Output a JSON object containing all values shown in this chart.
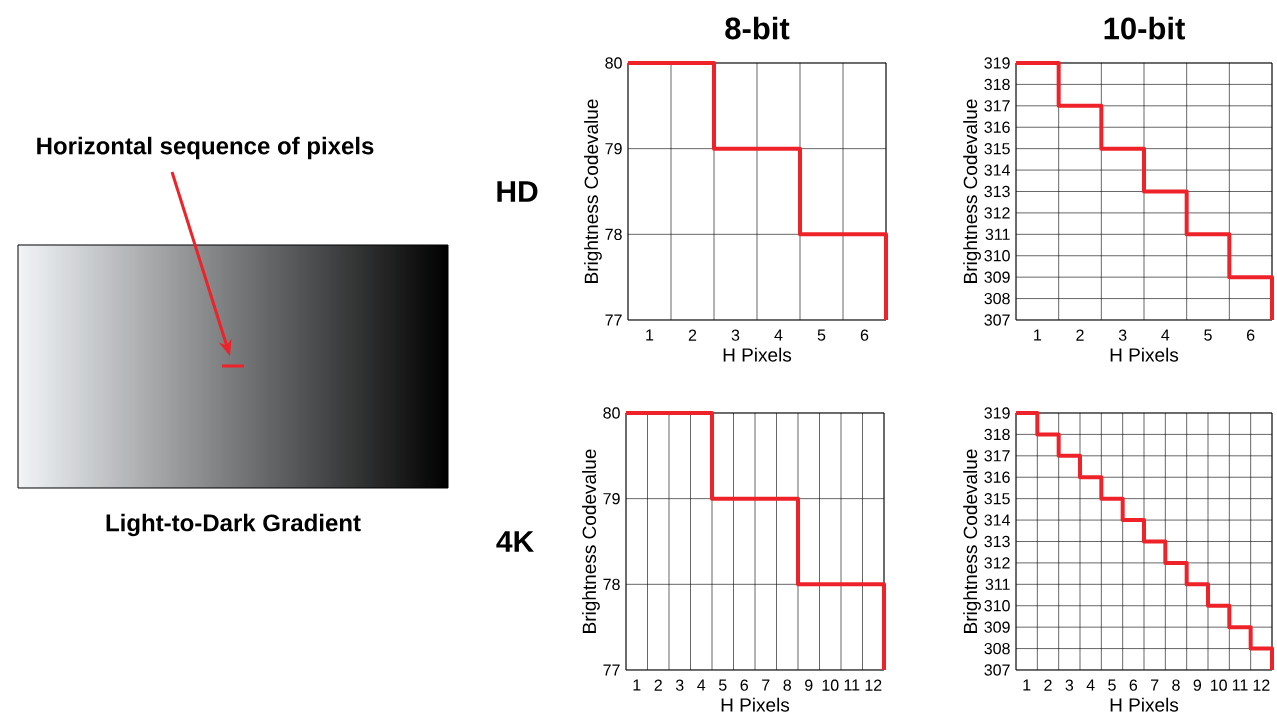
{
  "chart_data": [
    {
      "type": "other",
      "annotations": [
        "Horizontal sequence of pixels",
        "Light-to-Dark Gradient"
      ]
    },
    {
      "type": "step",
      "title": "8-bit",
      "xlabel": "H Pixels",
      "ylabel": "Brightness Codevalue",
      "annotations": [
        "HD"
      ],
      "x": [
        0.5,
        2.5,
        4.5,
        6.5
      ],
      "values": [
        80,
        79,
        78,
        77
      ],
      "color": "#ee2229",
      "xlim": [
        0.5,
        6.5
      ],
      "ylim": [
        77,
        80
      ],
      "xticks": [
        {
          "value": 0.5,
          "label": null
        },
        1,
        {
          "value": 1.5,
          "label": null
        },
        2,
        {
          "value": 2.5,
          "label": null
        },
        3,
        {
          "value": 3.5,
          "label": null
        },
        4,
        {
          "value": 4.5,
          "label": null
        },
        5,
        {
          "value": 5.5,
          "label": null
        },
        6,
        {
          "value": 6.5,
          "label": null
        }
      ],
      "yticks": [
        77,
        78,
        79,
        80
      ],
      "grid": true,
      "marker": "none",
      "line_style": "solid"
    },
    {
      "type": "step",
      "title": "10-bit",
      "xlabel": "H Pixels",
      "ylabel": "Brightness Codevalue",
      "x": [
        0.5,
        1.5,
        2.5,
        3.5,
        4.5,
        5.5,
        6.5
      ],
      "values": [
        319,
        317,
        315,
        313,
        311,
        309,
        307
      ],
      "color": "#ee2229",
      "xlim": [
        0.5,
        6.5
      ],
      "ylim": [
        307,
        319
      ],
      "xticks": [
        {
          "value": 0.5,
          "label": null
        },
        1,
        {
          "value": 1.5,
          "label": null
        },
        2,
        {
          "value": 2.5,
          "label": null
        },
        3,
        {
          "value": 3.5,
          "label": null
        },
        4,
        {
          "value": 4.5,
          "label": null
        },
        5,
        {
          "value": 5.5,
          "label": null
        },
        6,
        {
          "value": 6.5,
          "label": null
        }
      ],
      "yticks": [
        307,
        308,
        309,
        310,
        311,
        312,
        313,
        314,
        315,
        316,
        317,
        318,
        319
      ],
      "grid": true,
      "marker": "none",
      "line_style": "solid"
    },
    {
      "type": "step",
      "xlabel": "H Pixels",
      "ylabel": "Brightness Codevalue",
      "annotations": [
        "4K"
      ],
      "x": [
        0.5,
        4.5,
        8.5,
        12.5
      ],
      "values": [
        80,
        79,
        78,
        77
      ],
      "color": "#ee2229",
      "xlim": [
        0.5,
        12.5
      ],
      "ylim": [
        77,
        80
      ],
      "xticks": [
        {
          "value": 0.5,
          "label": null
        },
        1,
        {
          "value": 1.5,
          "label": null
        },
        2,
        {
          "value": 2.5,
          "label": null
        },
        3,
        {
          "value": 3.5,
          "label": null
        },
        4,
        {
          "value": 4.5,
          "label": null
        },
        5,
        {
          "value": 5.5,
          "label": null
        },
        6,
        {
          "value": 6.5,
          "label": null
        },
        7,
        {
          "value": 7.5,
          "label": null
        },
        8,
        {
          "value": 8.5,
          "label": null
        },
        9,
        {
          "value": 9.5,
          "label": null
        },
        10,
        {
          "value": 10.5,
          "label": null
        },
        11,
        {
          "value": 11.5,
          "label": null
        },
        12,
        {
          "value": 12.5,
          "label": null
        }
      ],
      "yticks": [
        77,
        78,
        79,
        80
      ],
      "grid": true,
      "marker": "none",
      "line_style": "solid"
    },
    {
      "type": "step",
      "xlabel": "H Pixels",
      "ylabel": "Brightness Codevalue",
      "x": [
        0.5,
        1.5,
        2.5,
        3.5,
        4.5,
        5.5,
        6.5,
        7.5,
        8.5,
        9.5,
        10.5,
        11.5,
        12.5
      ],
      "values": [
        319,
        318,
        317,
        316,
        315,
        314,
        313,
        312,
        311,
        310,
        309,
        308,
        307
      ],
      "color": "#ee2229",
      "xlim": [
        0.5,
        12.5
      ],
      "ylim": [
        307,
        319
      ],
      "xticks": [
        {
          "value": 0.5,
          "label": null
        },
        1,
        {
          "value": 1.5,
          "label": null
        },
        2,
        {
          "value": 2.5,
          "label": null
        },
        3,
        {
          "value": 3.5,
          "label": null
        },
        4,
        {
          "value": 4.5,
          "label": null
        },
        5,
        {
          "value": 5.5,
          "label": null
        },
        6,
        {
          "value": 6.5,
          "label": null
        },
        7,
        {
          "value": 7.5,
          "label": null
        },
        8,
        {
          "value": 8.5,
          "label": null
        },
        9,
        {
          "value": 9.5,
          "label": null
        },
        10,
        {
          "value": 10.5,
          "label": null
        },
        11,
        {
          "value": 11.5,
          "label": null
        },
        12,
        {
          "value": 12.5,
          "label": null
        }
      ],
      "yticks": [
        307,
        308,
        309,
        310,
        311,
        312,
        313,
        314,
        315,
        316,
        317,
        318,
        319
      ],
      "grid": true,
      "marker": "none",
      "line_style": "solid"
    }
  ]
}
